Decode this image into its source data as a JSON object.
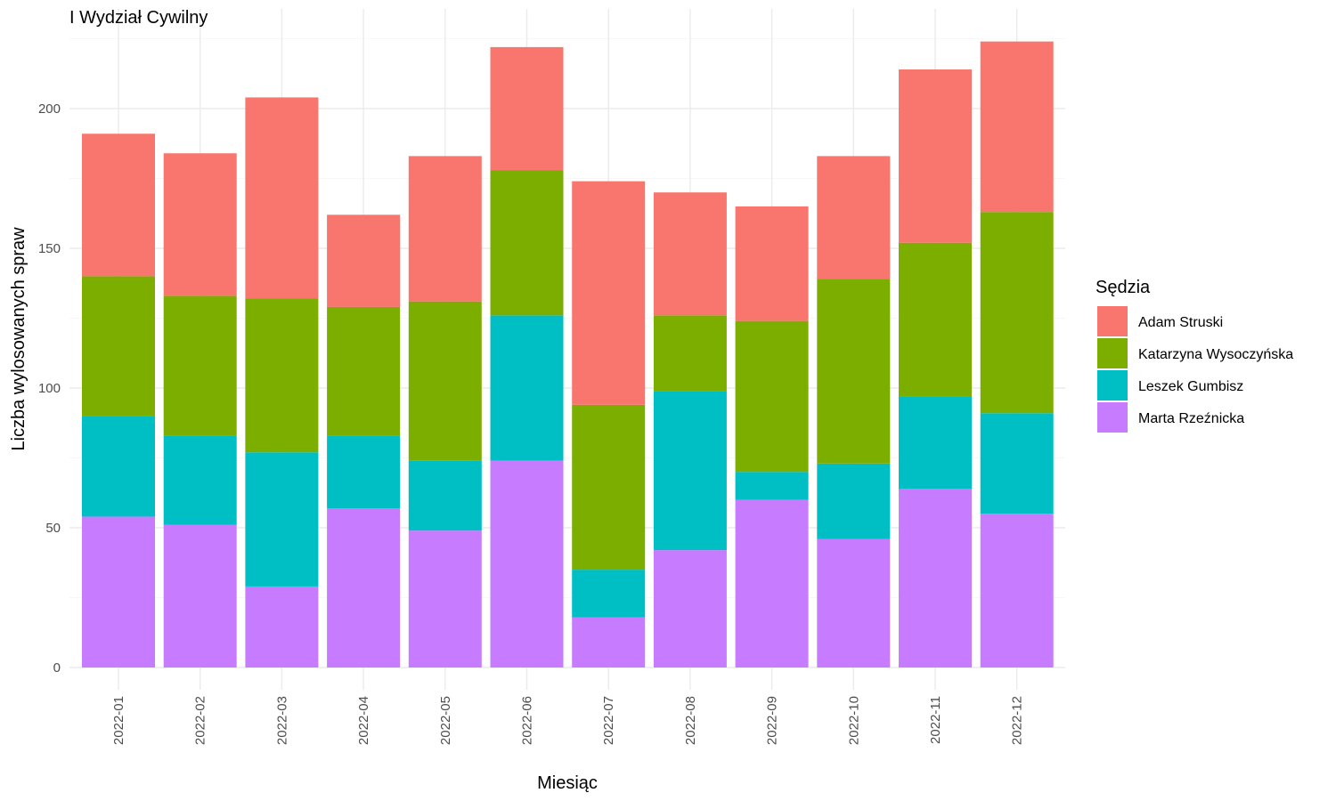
{
  "chart_data": {
    "type": "bar",
    "stacked": true,
    "title": "I Wydział Cywilny",
    "xlabel": "Miesiąc",
    "ylabel": "Liczba wylosowanych spraw",
    "ylim": [
      0,
      225
    ],
    "yticks": [
      0,
      50,
      100,
      150,
      200
    ],
    "grid": true,
    "legend": {
      "title": "Sędzia",
      "placement": "right"
    },
    "categories": [
      "2022-01",
      "2022-02",
      "2022-03",
      "2022-04",
      "2022-05",
      "2022-06",
      "2022-07",
      "2022-08",
      "2022-09",
      "2022-10",
      "2022-11",
      "2022-12"
    ],
    "series": [
      {
        "name": "Marta Rzeźnicka",
        "color": "#C77CFF",
        "values": [
          54,
          51,
          29,
          57,
          49,
          74,
          18,
          42,
          60,
          46,
          64,
          55
        ]
      },
      {
        "name": "Leszek Gumbisz",
        "color": "#00BFC4",
        "values": [
          36,
          32,
          48,
          26,
          25,
          52,
          17,
          57,
          10,
          27,
          33,
          36
        ]
      },
      {
        "name": "Katarzyna Wysoczyńska",
        "color": "#7CAE00",
        "values": [
          50,
          50,
          55,
          46,
          57,
          52,
          59,
          27,
          54,
          66,
          55,
          72
        ]
      },
      {
        "name": "Adam Struski",
        "color": "#F8766D",
        "values": [
          51,
          51,
          72,
          33,
          52,
          44,
          80,
          44,
          41,
          44,
          62,
          61
        ]
      }
    ],
    "legend_order": [
      "Adam Struski",
      "Katarzyna Wysoczyńska",
      "Leszek Gumbisz",
      "Marta Rzeźnicka"
    ]
  }
}
